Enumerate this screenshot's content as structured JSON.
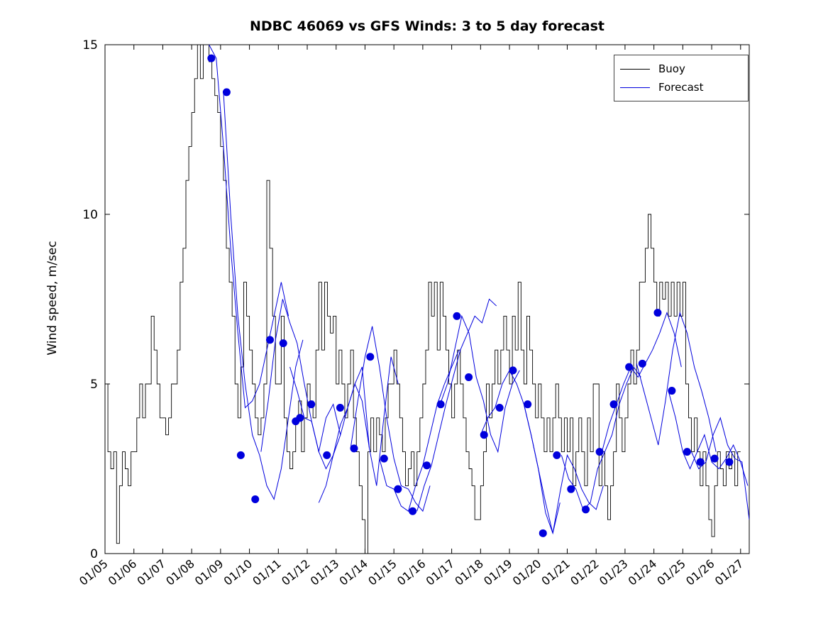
{
  "title": "NDBC 46069 vs GFS Winds: 3 to 5 day forecast",
  "chart_data": {
    "type": "line",
    "title": "NDBC 46069 vs GFS Winds: 3 to 5 day forecast",
    "xlabel": "",
    "ylabel": "Wind speed, m/sec",
    "ylim": [
      0,
      15
    ],
    "yticks": [
      0,
      5,
      10,
      15
    ],
    "xlim": [
      5,
      27.3
    ],
    "x_tick_days": [
      5,
      6,
      7,
      8,
      9,
      10,
      11,
      12,
      13,
      14,
      15,
      16,
      17,
      18,
      19,
      20,
      21,
      22,
      23,
      24,
      25,
      26,
      27
    ],
    "x_tick_labels": [
      "01/05",
      "01/06",
      "01/07",
      "01/08",
      "01/09",
      "01/10",
      "01/11",
      "01/12",
      "01/13",
      "01/14",
      "01/15",
      "01/16",
      "01/17",
      "01/18",
      "01/19",
      "01/20",
      "01/21",
      "01/22",
      "01/23",
      "01/24",
      "01/25",
      "01/26",
      "01/27"
    ],
    "grid": false,
    "legend": [
      "Buoy",
      "Forecast"
    ],
    "legend_position": "top-right",
    "colors": {
      "buoy": "#000000",
      "forecast": "#0000dd"
    },
    "series": [
      {
        "name": "Buoy",
        "color": "#000000",
        "x_start": 5.0,
        "x_step": 0.1,
        "values": [
          5,
          3,
          2.5,
          3,
          0.3,
          2,
          3,
          2.5,
          2,
          3,
          3,
          4,
          5,
          4,
          5,
          5,
          7,
          6,
          5,
          4,
          4,
          3.5,
          4,
          5,
          5,
          6,
          8,
          9,
          11,
          12,
          13,
          14,
          15,
          14,
          15,
          15,
          14.5,
          14,
          13.5,
          13,
          12,
          11,
          9,
          8,
          7,
          5,
          4,
          5.5,
          8,
          7,
          6,
          5,
          4,
          3.5,
          4,
          5,
          11,
          9,
          7,
          5,
          5,
          7,
          4,
          3,
          2.5,
          3,
          4,
          4.5,
          3,
          4,
          5,
          4.5,
          4,
          6,
          8,
          6,
          8,
          7,
          6.5,
          7,
          5,
          6,
          5,
          4,
          5,
          6,
          4,
          3,
          2,
          1,
          0,
          3,
          4,
          3,
          4,
          3.5,
          3,
          4,
          5,
          5,
          6,
          5,
          4,
          3,
          2,
          2.5,
          3,
          2,
          3,
          4,
          5,
          6,
          8,
          7,
          8,
          6,
          8,
          7,
          6,
          5,
          4,
          5,
          6,
          5,
          4,
          3,
          2.5,
          2,
          1,
          1,
          2,
          3,
          5,
          4,
          5,
          6,
          5,
          6,
          7,
          6,
          5,
          7,
          6,
          8,
          6,
          5,
          7,
          6,
          5,
          4,
          5,
          4,
          3,
          4,
          3,
          4,
          5,
          4,
          3,
          4,
          3,
          4,
          2,
          3,
          4,
          3,
          2,
          4,
          3,
          5,
          5,
          2,
          3,
          2,
          1,
          2,
          3,
          5,
          4,
          3,
          4,
          5,
          6,
          5,
          6,
          8,
          8,
          9,
          10,
          9,
          8,
          7,
          8,
          7.5,
          8,
          7,
          8,
          7,
          8,
          7,
          8,
          5,
          4,
          3,
          4,
          3,
          2,
          3,
          2,
          1,
          0.5,
          2,
          3,
          2.5,
          2,
          3,
          2.5,
          3,
          2,
          3,
          3
        ]
      }
    ],
    "forecast_segments": [
      {
        "x_start": 8.6,
        "x_step": 0.25,
        "values": [
          15,
          14.6,
          12,
          9,
          6.5,
          4.3,
          4.5,
          5,
          6,
          7,
          8,
          7
        ]
      },
      {
        "x_start": 9.1,
        "x_step": 0.25,
        "values": [
          13.6,
          10,
          7,
          5,
          3.5,
          2.9,
          2,
          1.6,
          2.5,
          4,
          5.5,
          6.3
        ]
      },
      {
        "x_start": 10.4,
        "x_step": 0.25,
        "values": [
          3,
          4.5,
          6.3,
          7.5,
          6.8,
          6.2,
          5,
          3.9,
          3,
          4,
          4.4,
          3.5
        ]
      },
      {
        "x_start": 11.4,
        "x_step": 0.25,
        "values": [
          5.5,
          4.8,
          4,
          3.9,
          3,
          2.5,
          2.9,
          3.5,
          4.3,
          5,
          4.5,
          3.1
        ]
      },
      {
        "x_start": 12.4,
        "x_step": 0.25,
        "values": [
          1.5,
          2,
          2.9,
          3.8,
          4.3,
          5,
          5.5,
          3.1,
          2,
          4,
          5.8,
          5
        ]
      },
      {
        "x_start": 13.5,
        "x_step": 0.25,
        "values": [
          3.1,
          4.5,
          5.8,
          6.7,
          5.5,
          4,
          2.8,
          2,
          1.9,
          1.5,
          1.25,
          2
        ]
      },
      {
        "x_start": 14.5,
        "x_step": 0.25,
        "values": [
          2.8,
          2,
          1.9,
          1.4,
          1.25,
          2,
          2.6,
          3.5,
          4.4,
          5,
          5.5,
          6
        ]
      },
      {
        "x_start": 15.8,
        "x_step": 0.25,
        "values": [
          1.25,
          2,
          2.6,
          3.5,
          4.4,
          5.2,
          6,
          6.5,
          7,
          6.8,
          7.5,
          7.3
        ]
      },
      {
        "x_start": 16.6,
        "x_step": 0.25,
        "values": [
          4.4,
          5,
          6,
          7,
          6.5,
          5.2,
          4.5,
          3.5,
          3,
          4.3,
          5,
          5.4
        ]
      },
      {
        "x_start": 18.0,
        "x_step": 0.25,
        "values": [
          3.5,
          4,
          4.3,
          5,
          5.4,
          5,
          4.4,
          3.5,
          2.5,
          1.5,
          0.6,
          1.5
        ]
      },
      {
        "x_start": 19.5,
        "x_step": 0.25,
        "values": [
          4.4,
          3.5,
          2.5,
          1.2,
          0.6,
          1.8,
          2.9,
          2.5,
          1.9,
          1.5,
          1.3,
          2
        ]
      },
      {
        "x_start": 20.8,
        "x_step": 0.25,
        "values": [
          2.9,
          2.2,
          1.9,
          1.3,
          1.5,
          2.5,
          3,
          3.5,
          4.4,
          5,
          5.5,
          5.2
        ]
      },
      {
        "x_start": 22.2,
        "x_step": 0.25,
        "values": [
          3,
          3.8,
          4.4,
          5,
          5.5,
          5.2,
          5.6,
          6,
          6.5,
          7.1,
          6.5,
          5.5
        ]
      },
      {
        "x_start": 23.4,
        "x_step": 0.25,
        "values": [
          5.6,
          4.8,
          4,
          3.2,
          4.5,
          6,
          7.1,
          6.5,
          5.5,
          4.8,
          4,
          3
        ]
      },
      {
        "x_start": 24.5,
        "x_step": 0.25,
        "values": [
          4.8,
          4,
          3,
          2.5,
          3,
          3.5,
          2.7,
          2.5,
          2.8,
          3.2,
          2.7,
          2
        ]
      },
      {
        "x_start": 25.3,
        "x_step": 0.25,
        "values": [
          3,
          2.5,
          2.7,
          3.5,
          4,
          3.2,
          2.8,
          2.7,
          1
        ]
      }
    ],
    "forecast_dots": {
      "x": [
        8.68,
        9.21,
        9.7,
        10.2,
        10.71,
        11.17,
        11.6,
        11.75,
        12.14,
        12.68,
        13.14,
        13.62,
        14.18,
        14.66,
        15.14,
        15.65,
        16.14,
        16.62,
        17.18,
        17.59,
        18.12,
        18.66,
        19.12,
        19.63,
        20.16,
        20.64,
        21.13,
        21.64,
        22.12,
        22.61,
        23.14,
        23.6,
        24.13,
        24.62,
        25.15,
        25.61,
        26.1,
        26.61
      ],
      "y": [
        14.6,
        13.6,
        2.9,
        1.6,
        6.3,
        6.2,
        3.9,
        4.0,
        4.4,
        2.9,
        4.3,
        3.1,
        5.8,
        2.8,
        1.9,
        1.25,
        2.6,
        4.4,
        7.0,
        5.2,
        3.5,
        4.3,
        5.4,
        4.4,
        0.6,
        2.9,
        1.9,
        1.3,
        3.0,
        4.4,
        5.5,
        5.6,
        7.1,
        4.8,
        3.0,
        2.7,
        2.8,
        2.7
      ]
    }
  }
}
